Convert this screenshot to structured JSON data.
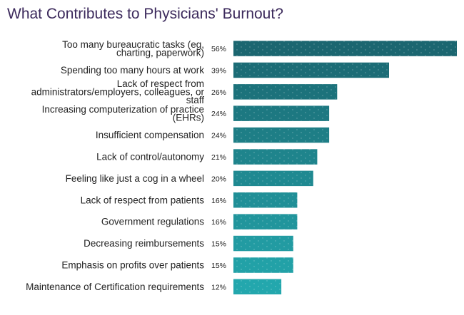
{
  "chart_data": {
    "type": "bar",
    "orientation": "horizontal",
    "title": "What Contributes to Physicians' Burnout?",
    "xlabel": "",
    "ylabel": "",
    "xlim": [
      0,
      56
    ],
    "grid": false,
    "value_suffix": "%",
    "colors": {
      "bar_start": "#1b6670",
      "bar_end": "#23a7ad",
      "text": "#222222",
      "title": "#3c2a5c"
    },
    "categories": [
      [
        "Too many bureaucratic tasks (eg,",
        "charting, paperwork)"
      ],
      [
        "Spending too many hours at work"
      ],
      [
        "Lack of respect from",
        "administrators/employers, colleagues, or",
        "staff"
      ],
      [
        "Increasing computerization of practice",
        "(EHRs)"
      ],
      [
        "Insufficient compensation"
      ],
      [
        "Lack of control/autonomy"
      ],
      [
        "Feeling like just a cog in a wheel"
      ],
      [
        "Lack of respect from patients"
      ],
      [
        "Government regulations"
      ],
      [
        "Decreasing reimbursements"
      ],
      [
        "Emphasis on profits over patients"
      ],
      [
        "Maintenance of Certification requirements"
      ]
    ],
    "values": [
      56,
      39,
      26,
      24,
      24,
      21,
      20,
      16,
      16,
      15,
      15,
      12
    ],
    "labels": [
      "56%",
      "39%",
      "26%",
      "24%",
      "24%",
      "21%",
      "20%",
      "16%",
      "16%",
      "15%",
      "15%",
      "12%"
    ]
  }
}
